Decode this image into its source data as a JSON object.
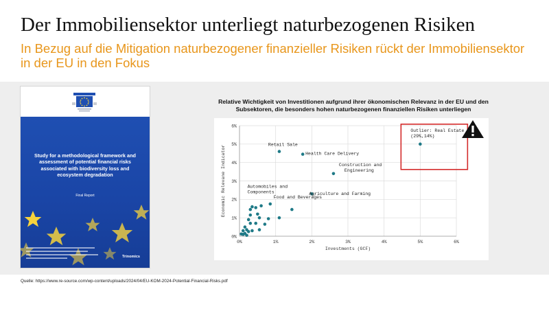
{
  "slide": {
    "title": "Der Immobiliensektor unterliegt naturbezogenen Risiken",
    "subtitle": "In Bezug auf die Mitigation naturbezogener finanzieller Risiken rückt der Immobiliensektor in der EU in den Fokus",
    "source": "Quelle: https://www.re-source.com/wp-content/uploads/2024/04/EU-KOM-2024-Potential-Financial-Risks.pdf"
  },
  "cover": {
    "title": "Study for a methodological framework and assessment of potential financial risks associated with biodiversity loss and ecosystem degradation",
    "report": "Final Report",
    "publisher": "Trinomics",
    "colors": {
      "blue": "#1f4fb2",
      "star": "#f6d23c"
    }
  },
  "chart_data": {
    "type": "scatter",
    "title": "Relative Wichtigkeit von Investitionen aufgrund ihrer ökonomischen Relevanz in der EU und den Subsektoren, die besonders hohen naturbezogenen finanziellen Risiken unterliegen",
    "xlabel": "Investments (GCF)",
    "ylabel": "Economic Relevane Indicator",
    "xlim": [
      0,
      6
    ],
    "ylim": [
      0,
      6
    ],
    "x_ticks": [
      "0%",
      "1%",
      "2%",
      "3%",
      "4%",
      "5%",
      "6%"
    ],
    "y_ticks": [
      "0%",
      "1%",
      "2%",
      "3%",
      "4%",
      "5%",
      "6%"
    ],
    "grid": true,
    "point_color": "#1f7a87",
    "highlight_color": "#d42a2a",
    "labeled_points": [
      {
        "label": "Retail Sale",
        "x": 1.1,
        "y": 4.6
      },
      {
        "label": "Health Care Delivery",
        "x": 1.75,
        "y": 4.45
      },
      {
        "label": "Construction and Engineering",
        "x": 2.6,
        "y": 3.4
      },
      {
        "label": "Agriculture and Farming",
        "x": 2.0,
        "y": 2.3
      },
      {
        "label": "Automobiles and Components",
        "x": 0.6,
        "y": 1.65
      },
      {
        "label": "Food and Beverages",
        "x": 0.85,
        "y": 1.75
      },
      {
        "label": "Outlier: Real Estate (29%,14%)",
        "x": 5.0,
        "y": 5.0
      }
    ],
    "points": [
      {
        "x": 0.35,
        "y": 1.6
      },
      {
        "x": 0.45,
        "y": 1.55
      },
      {
        "x": 0.3,
        "y": 1.45
      },
      {
        "x": 0.5,
        "y": 1.2
      },
      {
        "x": 0.3,
        "y": 1.15
      },
      {
        "x": 0.55,
        "y": 1.0
      },
      {
        "x": 0.25,
        "y": 0.9
      },
      {
        "x": 0.8,
        "y": 0.95
      },
      {
        "x": 1.1,
        "y": 1.0
      },
      {
        "x": 1.45,
        "y": 1.45
      },
      {
        "x": 0.3,
        "y": 0.7
      },
      {
        "x": 0.45,
        "y": 0.7
      },
      {
        "x": 0.7,
        "y": 0.65
      },
      {
        "x": 0.15,
        "y": 0.5
      },
      {
        "x": 0.2,
        "y": 0.35
      },
      {
        "x": 0.1,
        "y": 0.3
      },
      {
        "x": 0.25,
        "y": 0.25
      },
      {
        "x": 0.35,
        "y": 0.3
      },
      {
        "x": 0.55,
        "y": 0.35
      },
      {
        "x": 0.15,
        "y": 0.15
      },
      {
        "x": 0.1,
        "y": 0.1
      },
      {
        "x": 0.05,
        "y": 0.12
      },
      {
        "x": 0.2,
        "y": 0.05
      }
    ]
  }
}
